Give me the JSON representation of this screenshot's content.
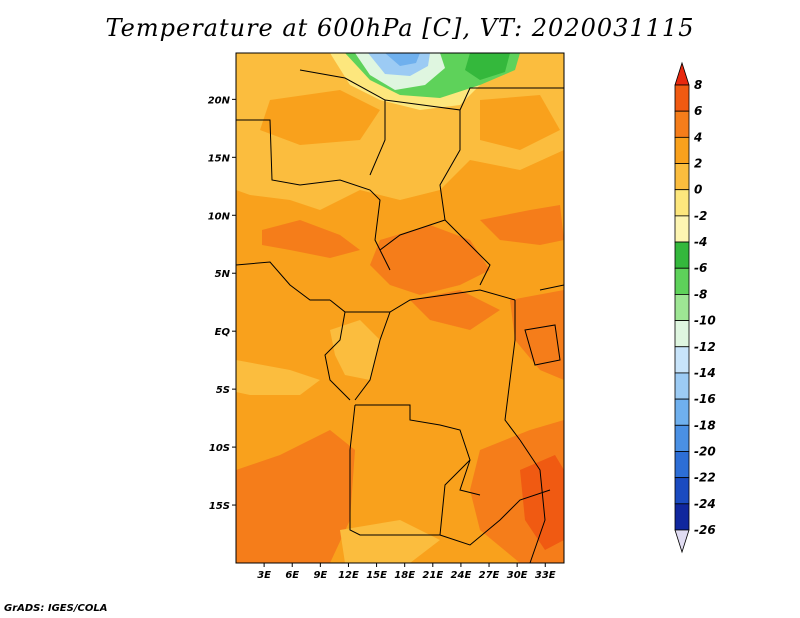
{
  "title": "Temperature at 600hPa [C], VT: 2020031115",
  "footer": "GrADS: IGES/COLA",
  "map": {
    "lon_range": [
      0,
      35
    ],
    "lat_range": [
      -20,
      24
    ],
    "lat_ticks": [
      {
        "value": 20,
        "label": "20N"
      },
      {
        "value": 15,
        "label": "15N"
      },
      {
        "value": 10,
        "label": "10N"
      },
      {
        "value": 5,
        "label": "5N"
      },
      {
        "value": 0,
        "label": "EQ"
      },
      {
        "value": -5,
        "label": "5S"
      },
      {
        "value": -10,
        "label": "10S"
      },
      {
        "value": -15,
        "label": "15S"
      }
    ],
    "lon_ticks": [
      {
        "value": 3,
        "label": "3E"
      },
      {
        "value": 6,
        "label": "6E"
      },
      {
        "value": 9,
        "label": "9E"
      },
      {
        "value": 12,
        "label": "12E"
      },
      {
        "value": 15,
        "label": "15E"
      },
      {
        "value": 18,
        "label": "18E"
      },
      {
        "value": 21,
        "label": "21E"
      },
      {
        "value": 24,
        "label": "24E"
      },
      {
        "value": 27,
        "label": "27E"
      },
      {
        "value": 30,
        "label": "30E"
      },
      {
        "value": 33,
        "label": "33E"
      }
    ]
  },
  "colorbar": {
    "labels": [
      "8",
      "6",
      "4",
      "2",
      "0",
      "-2",
      "-4",
      "-6",
      "-8",
      "-10",
      "-12",
      "-14",
      "-16",
      "-18",
      "-20",
      "-22",
      "-24",
      "-26"
    ],
    "colors": [
      "#e8280e",
      "#f05a12",
      "#f57d1a",
      "#f9a11c",
      "#fbbd3e",
      "#fde77d",
      "#fdf5b2",
      "#34b83c",
      "#5ed25a",
      "#9ee694",
      "#dff6e0",
      "#c8e4fa",
      "#9ccbf4",
      "#6fb0ee",
      "#4a90e4",
      "#2d6ed6",
      "#1a4bc0",
      "#10279e",
      "#0a0e6e",
      "#e0dcf2"
    ]
  }
}
